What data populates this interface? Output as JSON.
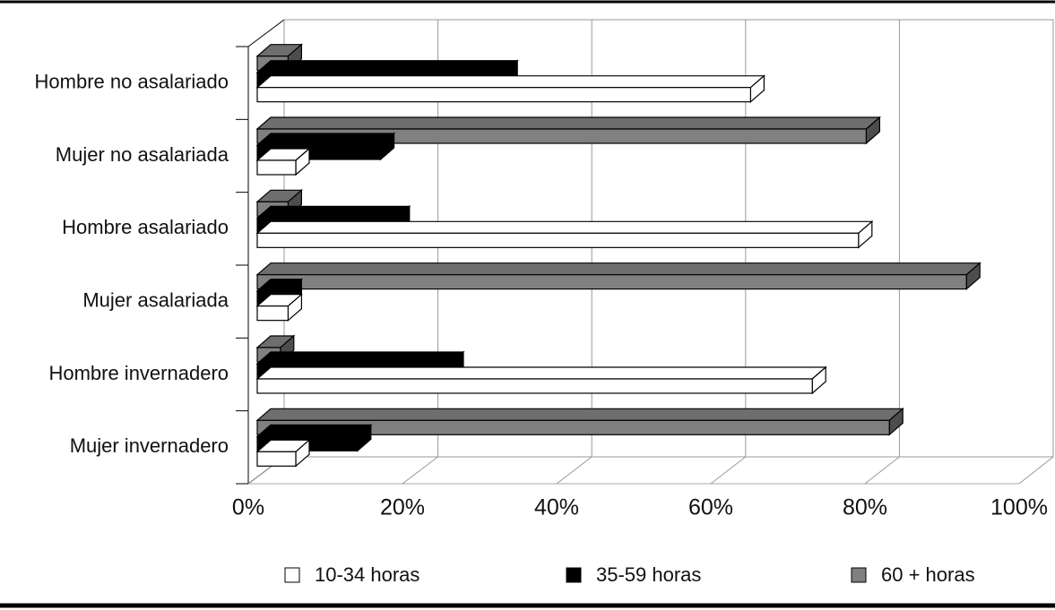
{
  "chart_data": {
    "type": "bar3d-horizontal",
    "categories": [
      "Hombre no asalariado",
      "Mujer no asalariada",
      "Hombre asalariado",
      "Mujer asalariada",
      "Hombre invernadero",
      "Mujer invernadero"
    ],
    "series": [
      {
        "name": "10-34 horas",
        "color": "#ffffff",
        "values": [
          64,
          5,
          78,
          4,
          72,
          5
        ]
      },
      {
        "name": "35-59 horas",
        "color": "#000000",
        "values": [
          32,
          16,
          18,
          4,
          25,
          13
        ]
      },
      {
        "name": "60 + horas",
        "color": "#808080",
        "values": [
          4,
          79,
          4,
          92,
          3,
          82
        ]
      }
    ],
    "xlim": [
      0,
      100
    ],
    "xticks": [
      {
        "value": 0,
        "label": "0%"
      },
      {
        "value": 20,
        "label": "20%"
      },
      {
        "value": 40,
        "label": "40%"
      },
      {
        "value": 60,
        "label": "60%"
      },
      {
        "value": 80,
        "label": "80%"
      },
      {
        "value": 100,
        "label": "100%"
      }
    ],
    "grid": true
  }
}
